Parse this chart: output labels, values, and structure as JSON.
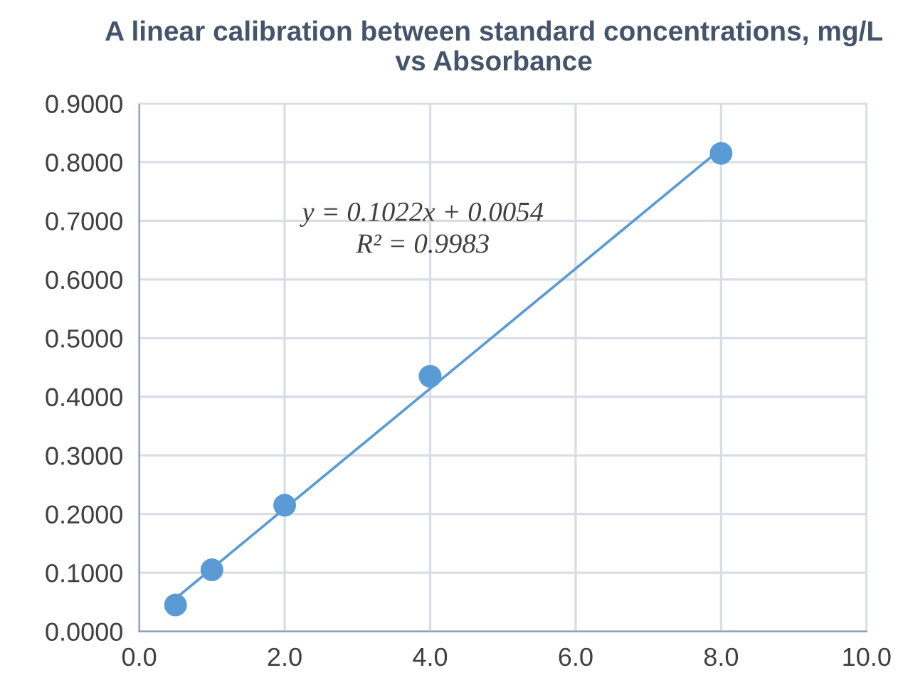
{
  "chart_data": {
    "type": "scatter",
    "title": "A linear calibration between standard concentrations, mg/L vs Absorbance",
    "annotations": [
      "y = 0.1022x + 0.0054",
      "R² = 0.9983"
    ],
    "series": [
      {
        "type": "scatter",
        "color": "#5b9bd5",
        "x": [
          0.5,
          1,
          2,
          4,
          8
        ],
        "values": [
          0.045,
          0.105,
          0.215,
          0.435,
          0.815
        ],
        "marker": "circle"
      },
      {
        "type": "line",
        "color": "#5b9bd5",
        "x": [
          0.5,
          8
        ],
        "values": [
          0.056,
          0.823
        ],
        "marker": "none",
        "line_style": "solid"
      }
    ],
    "xlim": [
      0,
      10
    ],
    "xticks": [
      {
        "value": 0,
        "label": "0.0"
      },
      {
        "value": 2,
        "label": "2.0"
      },
      {
        "value": 4,
        "label": "4.0"
      },
      {
        "value": 6,
        "label": "6.0"
      },
      {
        "value": 8,
        "label": "8.0"
      },
      {
        "value": 10,
        "label": "10.0"
      }
    ],
    "ylim": [
      0,
      0.9
    ],
    "yticks": [
      {
        "value": 0,
        "label": "0.0000"
      },
      {
        "value": 0.1,
        "label": "0.1000"
      },
      {
        "value": 0.2,
        "label": "0.2000"
      },
      {
        "value": 0.3,
        "label": "0.3000"
      },
      {
        "value": 0.4,
        "label": "0.4000"
      },
      {
        "value": 0.5,
        "label": "0.5000"
      },
      {
        "value": 0.6,
        "label": "0.6000"
      },
      {
        "value": 0.7,
        "label": "0.7000"
      },
      {
        "value": 0.8,
        "label": "0.8000"
      },
      {
        "value": 0.9,
        "label": "0.9000"
      }
    ],
    "grid": true,
    "legend": false
  }
}
